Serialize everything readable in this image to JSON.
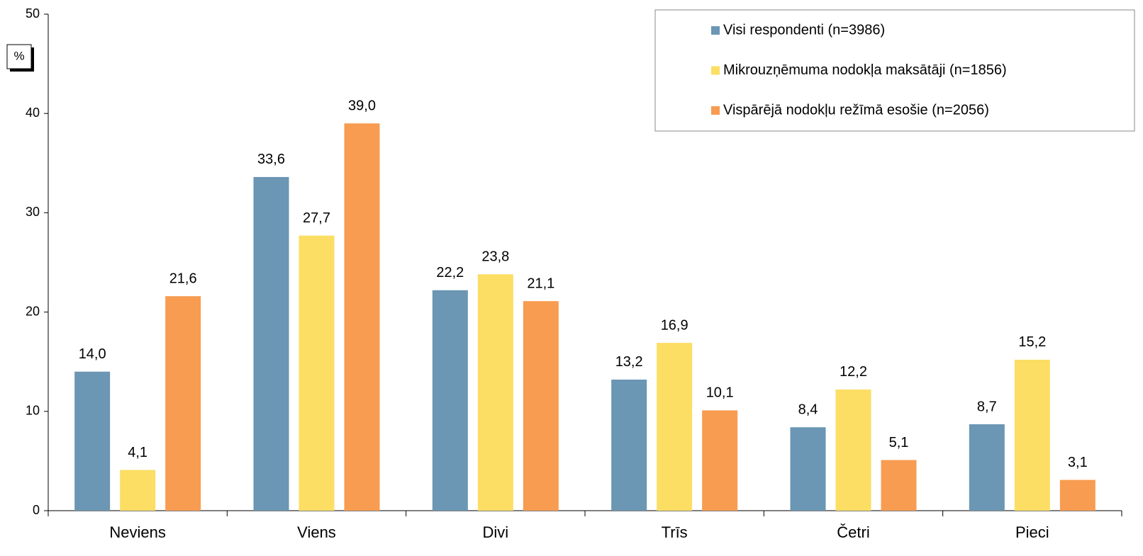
{
  "chart_data": {
    "type": "bar",
    "ylabel": "%",
    "categories": [
      "Neviens",
      "Viens",
      "Divi",
      "Trīs",
      "Četri",
      "Pieci"
    ],
    "series": [
      {
        "name": "Visi respondenti (n=3986)",
        "color": "#6b96b4",
        "values": [
          14.0,
          33.6,
          22.2,
          13.2,
          8.4,
          8.7
        ],
        "value_labels": [
          "14,0",
          "33,6",
          "22,2",
          "13,2",
          "8,4",
          "8,7"
        ]
      },
      {
        "name": "Mikrouzņēmuma nodokļa maksātāji (n=1856)",
        "color": "#fbde63",
        "values": [
          4.1,
          27.7,
          23.8,
          16.9,
          12.2,
          15.2
        ],
        "value_labels": [
          "4,1",
          "27,7",
          "23,8",
          "16,9",
          "12,2",
          "15,2"
        ]
      },
      {
        "name": "Vispārējā nodokļu režīmā esošie (n=2056)",
        "color": "#f79c51",
        "values": [
          21.6,
          39.0,
          21.1,
          10.1,
          5.1,
          3.1
        ],
        "value_labels": [
          "21,6",
          "39,0",
          "21,1",
          "10,1",
          "5,1",
          "3,1"
        ]
      }
    ],
    "ylim": [
      0,
      50
    ],
    "yticks": [
      0,
      10,
      20,
      30,
      40,
      50
    ],
    "legend": "upper right"
  }
}
